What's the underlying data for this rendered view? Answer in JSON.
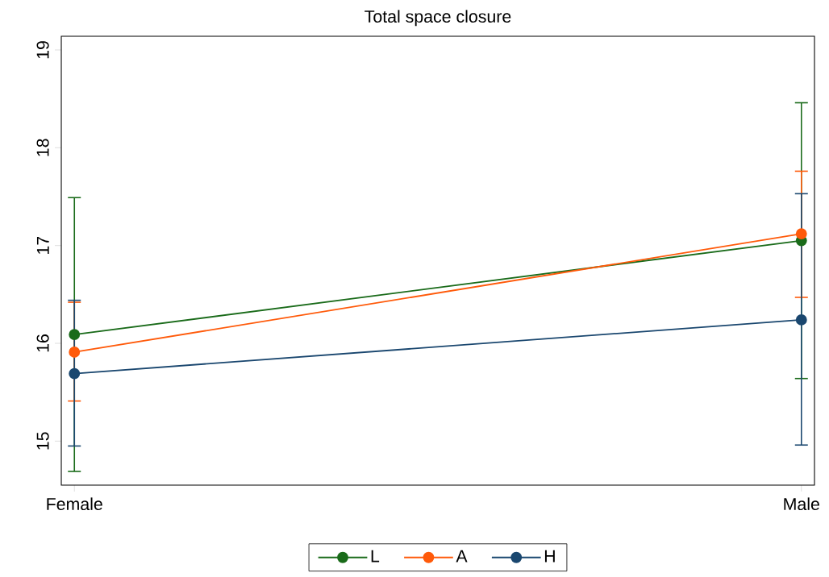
{
  "chart_data": {
    "type": "line",
    "title": "Total space closure",
    "categories": [
      "Female",
      "Male"
    ],
    "series": [
      {
        "name": "L",
        "color": "#1a6b1a",
        "values": [
          16.09,
          17.05
        ],
        "errors": [
          [
            14.69,
            17.49
          ],
          [
            15.64,
            18.46
          ]
        ]
      },
      {
        "name": "A",
        "color": "#ff5a0a",
        "values": [
          15.91,
          17.12
        ],
        "errors": [
          [
            15.41,
            16.42
          ],
          [
            16.47,
            17.76
          ]
        ]
      },
      {
        "name": "H",
        "color": "#1a476f",
        "values": [
          15.69,
          16.24
        ],
        "errors": [
          [
            14.95,
            16.44
          ],
          [
            14.96,
            17.53
          ]
        ]
      }
    ],
    "ylim": [
      14.55,
      19.14
    ],
    "yticks": [
      15,
      16,
      17,
      18,
      19
    ],
    "grid": false,
    "legend": "bottom",
    "marker": "circle",
    "line_style": "solid"
  }
}
